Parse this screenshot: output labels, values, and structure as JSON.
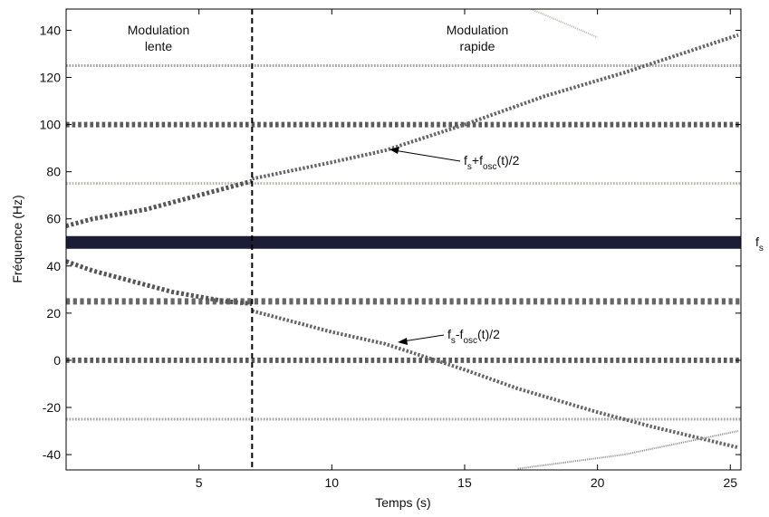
{
  "chart_data": {
    "type": "line",
    "xlabel": "Temps (s)",
    "ylabel": "Fréquence (Hz)",
    "xlim": [
      0,
      25.4
    ],
    "ylim": [
      -46.5,
      149
    ],
    "xticks": [
      5,
      10,
      15,
      20,
      25
    ],
    "yticks": [
      -40,
      -20,
      0,
      20,
      40,
      60,
      80,
      100,
      120,
      140
    ],
    "vlines": [
      7
    ],
    "series": [
      {
        "x": [
          0,
          25.4
        ],
        "values": [
          50,
          50
        ],
        "color": "#1c1c36",
        "width": 14
      },
      {
        "x": [
          0,
          25.4
        ],
        "values": [
          100,
          100
        ],
        "color": "#5a5a5a",
        "width": 6
      },
      {
        "x": [
          0,
          25.4
        ],
        "values": [
          0,
          0
        ],
        "color": "#5a5a5a",
        "width": 6
      },
      {
        "x": [
          0,
          25.4
        ],
        "values": [
          25,
          25
        ],
        "color": "#666666",
        "width": 7
      },
      {
        "x": [
          0,
          25.4
        ],
        "values": [
          75,
          75
        ],
        "color": "#b8bfb0",
        "width": 3
      },
      {
        "x": [
          0,
          25.4
        ],
        "values": [
          125,
          125
        ],
        "color": "#a8a8a8",
        "width": 3
      },
      {
        "x": [
          0,
          25.4
        ],
        "values": [
          -25,
          -25
        ],
        "color": "#a8a8a8",
        "width": 3
      },
      {
        "x": [
          0,
          1,
          2,
          3,
          4,
          5,
          6,
          7
        ],
        "values": [
          57,
          60,
          62,
          64,
          67,
          70,
          73,
          76
        ],
        "color": "#555555",
        "width": 5
      },
      {
        "x": [
          7,
          10,
          12,
          15,
          18,
          21,
          25.3
        ],
        "values": [
          77,
          84,
          89,
          100,
          112,
          122,
          138
        ],
        "color": "#666666",
        "width": 4
      },
      {
        "x": [
          0,
          1,
          2,
          3,
          4,
          5,
          6,
          7
        ],
        "values": [
          42,
          38,
          35,
          32,
          29,
          27,
          25,
          24
        ],
        "color": "#555555",
        "width": 5
      },
      {
        "x": [
          7,
          10,
          12,
          15,
          17,
          20,
          22,
          25.3
        ],
        "values": [
          21,
          12,
          7,
          -4,
          -12,
          -22,
          -28,
          -37
        ],
        "color": "#666666",
        "width": 4
      },
      {
        "x": [
          17,
          21,
          25.3
        ],
        "values": [
          -46,
          -40,
          -30
        ],
        "color": "#999999",
        "width": 2
      },
      {
        "x": [
          17.5,
          20
        ],
        "values": [
          149,
          137
        ],
        "color": "#b8c8b0",
        "width": 2
      }
    ],
    "annotations": [
      {
        "lines": [
          "Modulation",
          "lente"
        ]
      },
      {
        "lines": [
          "Modulation",
          "rapide"
        ]
      },
      {
        "parts": [
          "f",
          "s",
          "+f",
          "osc",
          "(t)/2"
        ]
      },
      {
        "parts": [
          "f",
          "s",
          "-f",
          "osc",
          "(t)/2"
        ]
      },
      {
        "parts": [
          "f",
          "s"
        ]
      }
    ]
  }
}
